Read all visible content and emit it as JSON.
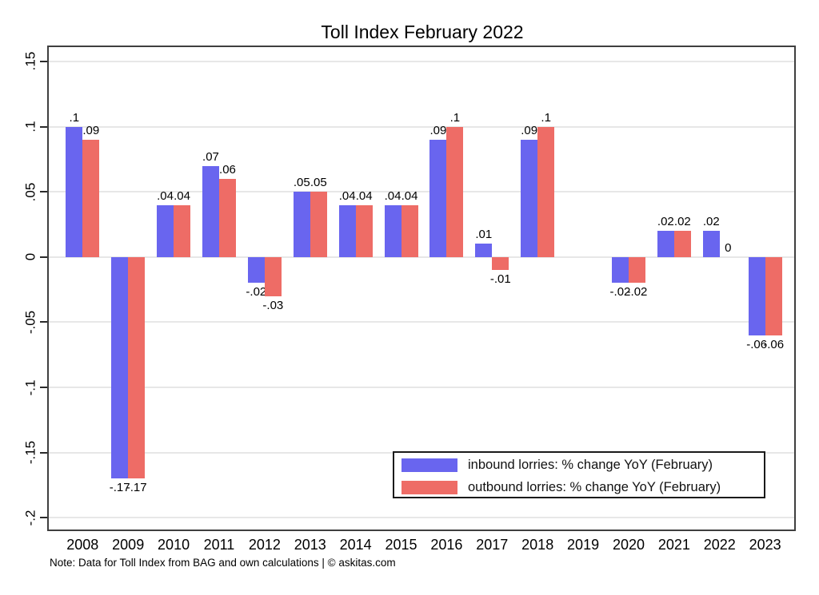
{
  "title": "Toll Index February 2022",
  "note": "Note: Data for Toll Index from BAG and own calculations | © askitas.com",
  "colors": {
    "inbound": "#6965ef",
    "outbound": "#ee6c66",
    "grid": "#e7e7e7",
    "frame": "#3f3f3f"
  },
  "legend": {
    "inbound_label": "inbound lorries: % change YoY (February)",
    "outbound_label": "outbound lorries: % change YoY (February)"
  },
  "chart_data": {
    "type": "bar",
    "title": "Toll Index February 2022",
    "xlabel": "",
    "ylabel": "",
    "categories": [
      "2008",
      "2009",
      "2010",
      "2011",
      "2012",
      "2013",
      "2014",
      "2015",
      "2016",
      "2017",
      "2018",
      "2019",
      "2020",
      "2021",
      "2022",
      "2023"
    ],
    "series": [
      {
        "name": "inbound lorries: % change YoY (February)",
        "color": "#6965ef",
        "values": [
          0.1,
          -0.17,
          0.04,
          0.07,
          -0.02,
          0.05,
          0.04,
          0.04,
          0.09,
          0.01,
          0.09,
          null,
          -0.02,
          0.02,
          0.02,
          -0.06
        ],
        "labels": [
          ".1",
          "-.17",
          ".04",
          ".07",
          "-.02",
          ".05",
          ".04",
          ".04",
          ".09",
          ".01",
          ".09",
          null,
          "-.02",
          ".02",
          ".02",
          "-.06"
        ]
      },
      {
        "name": "outbound lorries: % change YoY (February)",
        "color": "#ee6c66",
        "values": [
          0.09,
          -0.17,
          0.04,
          0.06,
          -0.03,
          0.05,
          0.04,
          0.04,
          0.1,
          -0.01,
          0.1,
          null,
          -0.02,
          0.02,
          0,
          -0.06
        ],
        "labels": [
          ".09",
          "-.17",
          ".04",
          ".06",
          "-.03",
          ".05",
          ".04",
          ".04",
          ".1",
          "-.01",
          ".1",
          null,
          "-.02",
          ".02",
          "0",
          "-.06"
        ]
      }
    ],
    "y_ticks": [
      {
        "label": ".15",
        "value": 0.15
      },
      {
        "label": ".1",
        "value": 0.1
      },
      {
        "label": ".05",
        "value": 0.05
      },
      {
        "label": "0",
        "value": 0
      },
      {
        "label": "-.05",
        "value": -0.05
      },
      {
        "label": "-.1",
        "value": -0.1
      },
      {
        "label": "-.15",
        "value": -0.15
      },
      {
        "label": "-.2",
        "value": -0.2
      }
    ],
    "ylim": [
      -0.209,
      0.161
    ],
    "grid": true,
    "legend_position": "bottom-right-inside"
  }
}
